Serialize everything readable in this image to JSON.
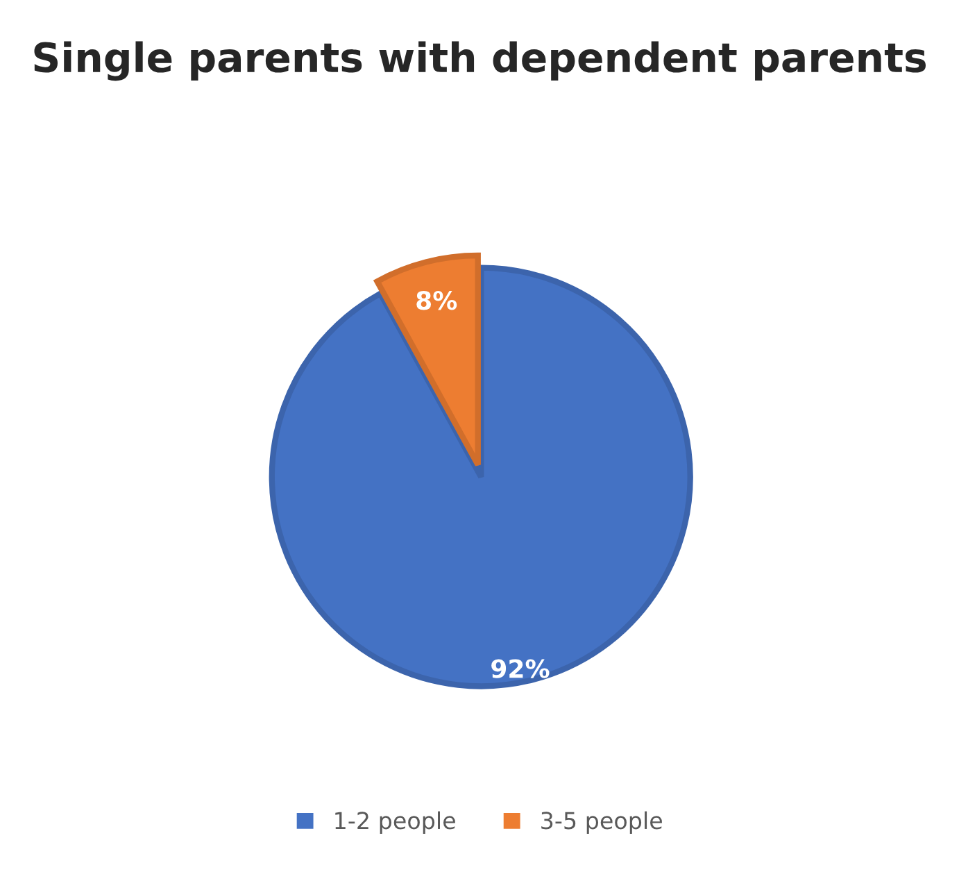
{
  "chart_data": {
    "type": "pie",
    "title": "Single parents with dependent parents",
    "categories": [
      "1-2 people",
      "3-5 people"
    ],
    "values": [
      92,
      8
    ],
    "colors": [
      "#4472c4",
      "#ed7d31"
    ],
    "value_labels": [
      "92%",
      "8%"
    ],
    "legend": "bottom"
  }
}
